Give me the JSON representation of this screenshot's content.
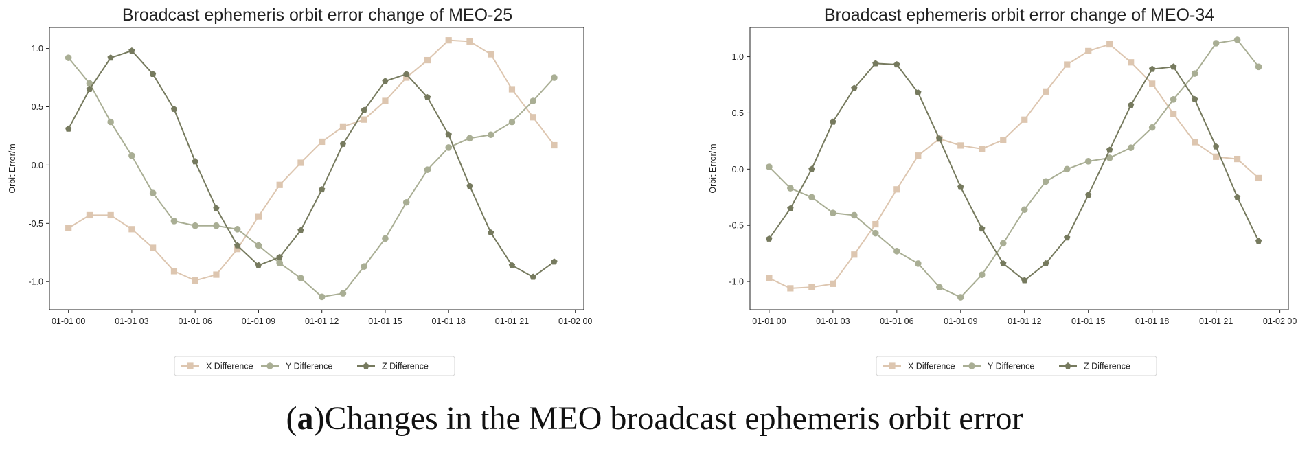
{
  "chart_data": [
    {
      "type": "line",
      "title": "Broadcast ephemeris orbit error change of MEO-25",
      "xlabel": "",
      "ylabel": "Orbit Error/m",
      "ylim": [
        -1.24,
        1.18
      ],
      "yticks": [
        -1.0,
        -0.5,
        0.0,
        0.5,
        1.0
      ],
      "ytick_labels": [
        "-1.0",
        "-0.5",
        "0.0",
        "0.5",
        "1.0"
      ],
      "xlim": [
        -0.9,
        24.4
      ],
      "xticks": [
        0,
        3,
        6,
        9,
        12,
        15,
        18,
        21,
        24
      ],
      "xtick_labels": [
        "01-01 00",
        "01-01 03",
        "01-01 06",
        "01-01 09",
        "01-01 12",
        "01-01 15",
        "01-01 18",
        "01-01 21",
        "01-02 00"
      ],
      "x_hours": [
        0,
        1,
        2,
        3,
        4,
        5,
        6,
        7,
        8,
        9,
        10,
        11,
        12,
        13,
        14,
        15,
        16,
        17,
        18,
        19,
        20,
        21,
        22,
        23
      ],
      "legend_position": "below",
      "series": [
        {
          "name": "X Difference",
          "color": "#ddc6b0",
          "marker": "square",
          "values": [
            -0.54,
            -0.43,
            -0.43,
            -0.55,
            -0.71,
            -0.91,
            -0.99,
            -0.94,
            -0.72,
            -0.44,
            -0.17,
            0.02,
            0.2,
            0.33,
            0.39,
            0.55,
            0.75,
            0.9,
            1.07,
            1.06,
            0.95,
            0.65,
            0.41,
            0.17
          ]
        },
        {
          "name": "Y Difference",
          "color": "#a9ae94",
          "marker": "circle",
          "values": [
            0.92,
            0.7,
            0.37,
            0.08,
            -0.24,
            -0.48,
            -0.52,
            -0.52,
            -0.55,
            -0.69,
            -0.84,
            -0.97,
            -1.13,
            -1.1,
            -0.87,
            -0.63,
            -0.32,
            -0.04,
            0.15,
            0.23,
            0.26,
            0.37,
            0.55,
            0.75
          ]
        },
        {
          "name": "Z Difference",
          "color": "#767a5e",
          "marker": "pentagon",
          "values": [
            0.31,
            0.65,
            0.92,
            0.98,
            0.78,
            0.48,
            0.03,
            -0.37,
            -0.69,
            -0.86,
            -0.79,
            -0.56,
            -0.21,
            0.18,
            0.47,
            0.72,
            0.78,
            0.58,
            0.26,
            -0.18,
            -0.58,
            -0.86,
            -0.96,
            -0.83
          ]
        }
      ]
    },
    {
      "type": "line",
      "title": "Broadcast ephemeris orbit error change of MEO-34",
      "xlabel": "",
      "ylabel": "Orbit Error/m",
      "ylim": [
        -1.25,
        1.26
      ],
      "yticks": [
        -1.0,
        -0.5,
        0.0,
        0.5,
        1.0
      ],
      "ytick_labels": [
        "-1.0",
        "-0.5",
        "0.0",
        "0.5",
        "1.0"
      ],
      "xlim": [
        -0.9,
        24.4
      ],
      "xticks": [
        0,
        3,
        6,
        9,
        12,
        15,
        18,
        21,
        24
      ],
      "xtick_labels": [
        "01-01 00",
        "01-01 03",
        "01-01 06",
        "01-01 09",
        "01-01 12",
        "01-01 15",
        "01-01 18",
        "01-01 21",
        "01-02 00"
      ],
      "x_hours": [
        0,
        1,
        2,
        3,
        4,
        5,
        6,
        7,
        8,
        9,
        10,
        11,
        12,
        13,
        14,
        15,
        16,
        17,
        18,
        19,
        20,
        21,
        22,
        23
      ],
      "legend_position": "below",
      "series": [
        {
          "name": "X Difference",
          "color": "#ddc6b0",
          "marker": "square",
          "values": [
            -0.97,
            -1.06,
            -1.05,
            -1.02,
            -0.76,
            -0.49,
            -0.18,
            0.12,
            0.27,
            0.21,
            0.18,
            0.26,
            0.44,
            0.69,
            0.93,
            1.05,
            1.11,
            0.95,
            0.76,
            0.49,
            0.24,
            0.11,
            0.09,
            -0.08
          ]
        },
        {
          "name": "Y Difference",
          "color": "#a9ae94",
          "marker": "circle",
          "values": [
            0.02,
            -0.17,
            -0.25,
            -0.39,
            -0.41,
            -0.57,
            -0.73,
            -0.84,
            -1.05,
            -1.14,
            -0.94,
            -0.66,
            -0.36,
            -0.11,
            -0.0,
            0.07,
            0.1,
            0.19,
            0.37,
            0.62,
            0.85,
            1.12,
            1.15,
            0.91
          ]
        },
        {
          "name": "Z Difference",
          "color": "#767a5e",
          "marker": "pentagon",
          "values": [
            -0.62,
            -0.35,
            0.0,
            0.42,
            0.72,
            0.94,
            0.93,
            0.68,
            0.27,
            -0.16,
            -0.53,
            -0.84,
            -0.99,
            -0.84,
            -0.61,
            -0.23,
            0.17,
            0.57,
            0.89,
            0.91,
            0.62,
            0.2,
            -0.25,
            -0.64
          ]
        }
      ]
    }
  ],
  "caption": {
    "label": "a",
    "open_paren": "(",
    "close_paren": ")",
    "text": "Changes in the MEO broadcast ephemeris orbit error"
  }
}
